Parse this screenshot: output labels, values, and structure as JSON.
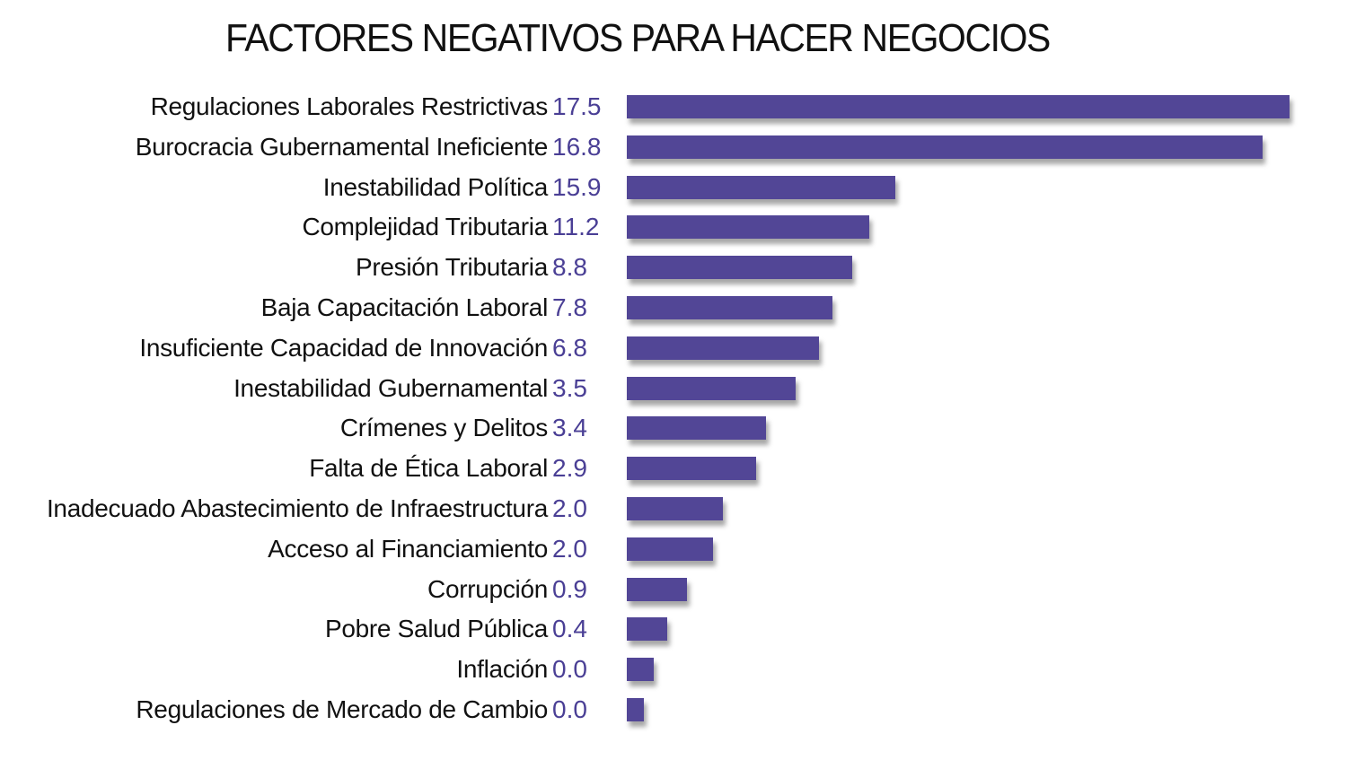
{
  "chart_data": {
    "type": "bar",
    "orientation": "horizontal",
    "title": "FACTORES NEGATIVOS PARA HACER NEGOCIOS",
    "xlabel": "",
    "ylabel": "",
    "grid": false,
    "bar_color": "#524696",
    "value_color": "#4a3f95",
    "categories": [
      "Regulaciones Laborales Restrictivas",
      "Burocracia Gubernamental Ineficiente",
      "Inestabilidad Política",
      "Complejidad Tributaria",
      "Presión Tributaria",
      "Baja Capacitación Laboral",
      "Insuficiente Capacidad de Innovación",
      "Inestabilidad Gubernamental",
      "Crímenes y Delitos",
      "Falta de Ética Laboral",
      "Inadecuado Abastecimiento de Infraestructura",
      "Acceso al Financiamiento",
      "Corrupción",
      "Pobre Salud Pública",
      "Inflación",
      "Regulaciones de Mercado de Cambio"
    ],
    "values": [
      17.5,
      16.8,
      15.9,
      11.2,
      8.8,
      7.8,
      6.8,
      3.5,
      3.4,
      2.9,
      2.0,
      2.0,
      0.9,
      0.4,
      0.0,
      0.0
    ],
    "value_labels": [
      "17.5",
      "16.8",
      "15.9",
      "11.2",
      "8.8",
      "7.8",
      "6.8",
      "3.5",
      "3.4",
      "2.9",
      "2.0",
      "2.0",
      "0.9",
      "0.4",
      "0.0",
      "0.0"
    ]
  }
}
